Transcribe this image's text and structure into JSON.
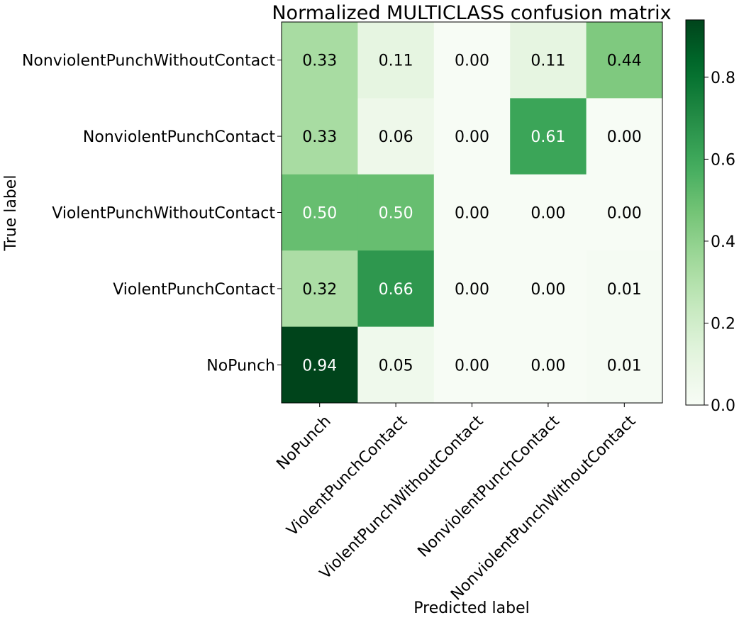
{
  "chart_data": {
    "type": "heatmap",
    "title": "Normalized MULTICLASS confusion matrix",
    "xlabel": "Predicted label",
    "ylabel": "True label",
    "x_categories": [
      "NoPunch",
      "ViolentPunchContact",
      "ViolentPunchWithoutContact",
      "NonviolentPunchContact",
      "NonviolentPunchWithoutContact"
    ],
    "y_categories": [
      "NonviolentPunchWithoutContact",
      "NonviolentPunchContact",
      "ViolentPunchWithoutContact",
      "ViolentPunchContact",
      "NoPunch"
    ],
    "values": [
      [
        0.33,
        0.11,
        0.0,
        0.11,
        0.44
      ],
      [
        0.33,
        0.06,
        0.0,
        0.61,
        0.0
      ],
      [
        0.5,
        0.5,
        0.0,
        0.0,
        0.0
      ],
      [
        0.32,
        0.66,
        0.0,
        0.0,
        0.01
      ],
      [
        0.94,
        0.05,
        0.0,
        0.0,
        0.01
      ]
    ],
    "value_format": "0.00",
    "colormap": "Greens",
    "vmin": 0.0,
    "vmax": 0.94,
    "colorbar_ticks": [
      "0.0",
      "0.2",
      "0.4",
      "0.6",
      "0.8"
    ],
    "text_color_light": "#ffffff",
    "text_color_dark": "#000000",
    "grid": false
  }
}
